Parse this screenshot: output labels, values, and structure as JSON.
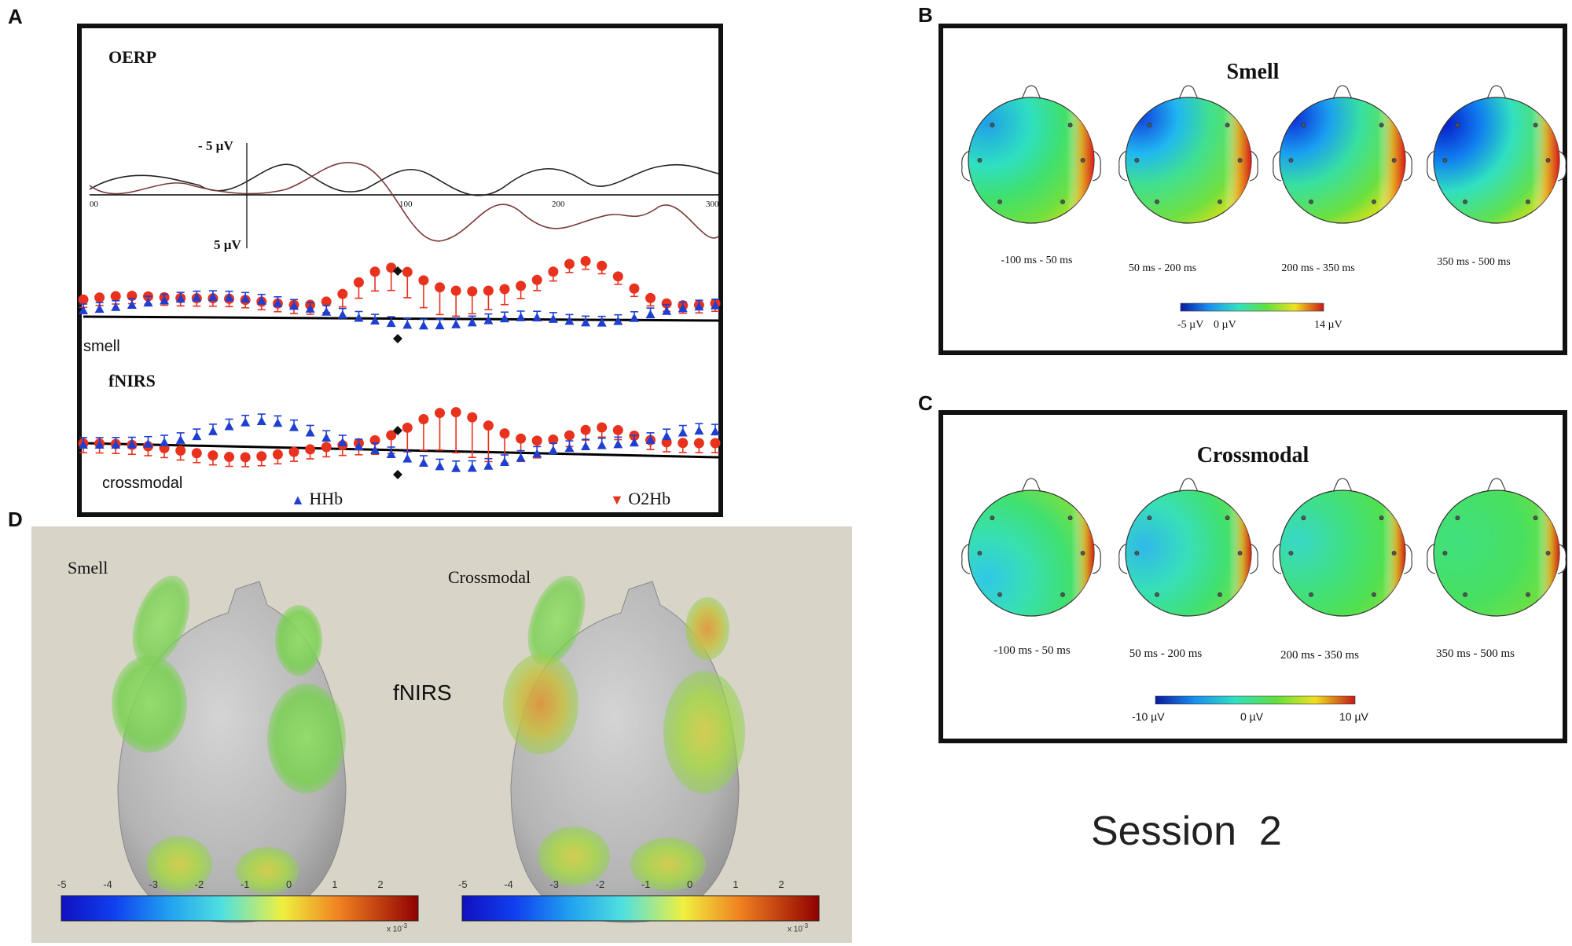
{
  "panels": {
    "a": {
      "letter": "A",
      "oerp_title": "OERP",
      "yaxis_top": "- 5 µV",
      "yaxis_bottom": "5 µV",
      "x_ticks": [
        "00",
        "100",
        "200",
        "300"
      ],
      "smell_label": "smell",
      "fnirs_title": "fNIRS",
      "crossmodal_label": "crossmodal",
      "legend_hhb": "HHb",
      "legend_o2hb": "O2Hb",
      "colors": {
        "hhb": "#1f3fd0",
        "o2hb": "#e8321e",
        "trace": "#000000",
        "trace2": "#7a3a3a"
      }
    },
    "b": {
      "letter": "B",
      "title": "Smell",
      "time_windows": [
        "-100 ms - 50 ms",
        "50 ms - 200 ms",
        "200 ms - 350 ms",
        "350 ms - 500 ms"
      ],
      "scale_min": "-5 µV",
      "scale_mid": "0 µV",
      "scale_max": "14 µV"
    },
    "c": {
      "letter": "C",
      "title": "Crossmodal",
      "time_windows": [
        "-100 ms - 50 ms",
        "50 ms - 200 ms",
        "200 ms - 350 ms",
        "350 ms - 500 ms"
      ],
      "scale_min": "-10 µV",
      "scale_mid": "0 µV",
      "scale_max": "10 µV"
    },
    "d": {
      "letter": "D",
      "label_left": "Smell",
      "label_right": "Crossmodal",
      "center_label": "fNIRS",
      "scale_ticks": [
        "-5",
        "-4",
        "-3",
        "-2",
        "-1",
        "0",
        "1",
        "2"
      ],
      "scale_multiplier": "x 10",
      "scale_exponent": "-3"
    }
  },
  "session_label": "Session  2"
}
